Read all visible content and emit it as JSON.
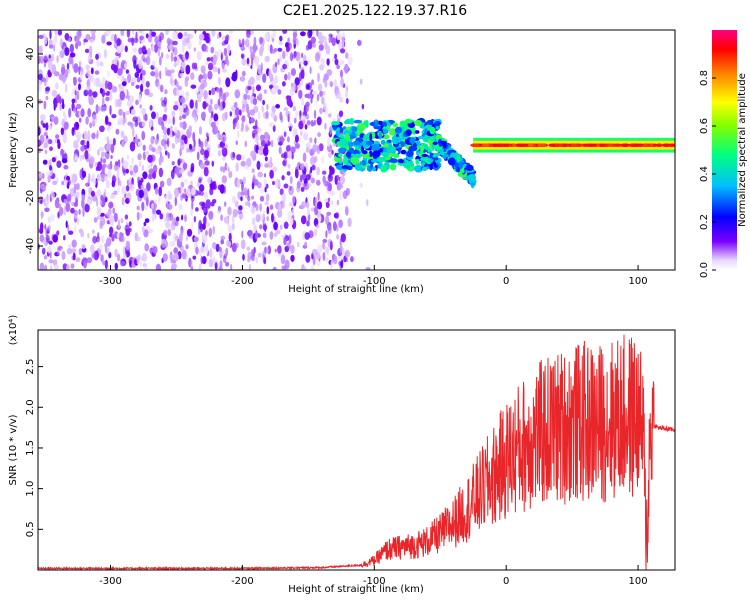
{
  "title": "C2E1.2025.122.19.37.R16",
  "chart_data": [
    {
      "type": "heatmap",
      "xlabel": "Height of straight line (km)",
      "ylabel": "Frequency (Hz)",
      "xlim": [
        -355,
        128
      ],
      "ylim": [
        -50,
        50
      ],
      "xticks": [
        -300,
        -200,
        -100,
        0,
        100
      ],
      "yticks": [
        -40,
        -20,
        0,
        20,
        40
      ],
      "colorbar": {
        "label": "Normalized spectral amplitude",
        "range": [
          0,
          1
        ],
        "ticks": [
          "0.0",
          "0.2",
          "0.4",
          "0.6",
          "0.8"
        ],
        "tick_values": [
          0.0,
          0.2,
          0.4,
          0.6,
          0.8
        ],
        "colormap": [
          "#ffffff",
          "#7a00ff",
          "#0000ff",
          "#00bfff",
          "#00ff80",
          "#80ff00",
          "#ffff00",
          "#ff8000",
          "#ff0000",
          "#ff0080"
        ]
      },
      "regions": [
        {
          "x": [
            -355,
            -120
          ],
          "y": [
            -50,
            50
          ],
          "level": 0.12,
          "pattern": "broadband noise"
        },
        {
          "x": [
            -130,
            -50
          ],
          "y": [
            -8,
            12
          ],
          "level": 0.5,
          "pattern": "diffuse signal"
        },
        {
          "x": [
            -60,
            -25
          ],
          "y": [
            -15,
            12
          ],
          "level": 0.55,
          "pattern": "descending branch"
        },
        {
          "x": [
            -25,
            128
          ],
          "y": [
            1,
            3
          ],
          "level": 0.9,
          "pattern": "narrow line near 2 Hz"
        }
      ]
    },
    {
      "type": "line",
      "xlabel": "Height of straight line (km)",
      "ylabel": "SNR (10 * v/v)",
      "y_multiplier": "(x10⁴)",
      "xlim": [
        -355,
        128
      ],
      "ylim": [
        0,
        2.95
      ],
      "xticks": [
        -300,
        -200,
        -100,
        0,
        100
      ],
      "yticks": [
        "0.5",
        "1.0",
        "1.5",
        "2.0",
        "2.5"
      ],
      "ytick_values": [
        0.5,
        1.0,
        1.5,
        2.0,
        2.5
      ],
      "series": [
        {
          "color": "#e8262a",
          "x": [
            -355,
            -300,
            -200,
            -140,
            -110,
            -100,
            -90,
            -80,
            -70,
            -60,
            -50,
            -40,
            -30,
            -20,
            -10,
            0,
            10,
            20,
            30,
            40,
            50,
            60,
            70,
            80,
            90,
            100,
            104,
            106,
            108,
            110,
            115,
            128
          ],
          "values": [
            0.02,
            0.02,
            0.02,
            0.03,
            0.06,
            0.12,
            0.25,
            0.28,
            0.3,
            0.35,
            0.45,
            0.58,
            0.75,
            0.95,
            1.15,
            1.35,
            1.5,
            1.62,
            1.7,
            1.75,
            1.8,
            1.82,
            1.8,
            1.85,
            1.88,
            1.9,
            1.7,
            0.1,
            1.2,
            1.8,
            1.75,
            1.72
          ]
        }
      ]
    }
  ]
}
